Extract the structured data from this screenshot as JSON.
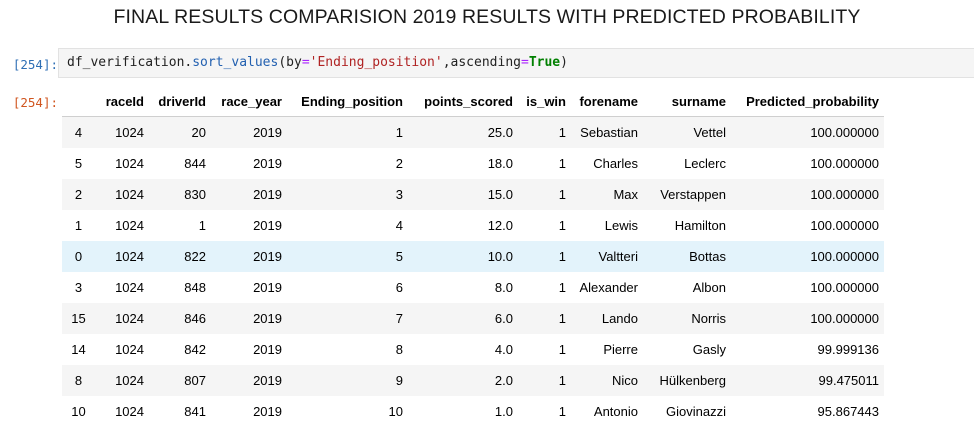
{
  "title": "FINAL RESULTS COMPARISION 2019 RESULTS WITH PREDICTED PROBABILITY",
  "input_prompt": "[254]:",
  "output_prompt": "[254]:",
  "code": {
    "var": "df_verification",
    "dot": ".",
    "method": "sort_values",
    "p1": "(by",
    "eq1": "=",
    "arg1": "'Ending_position'",
    "p2": ",ascending",
    "eq2": "=",
    "kw": "True",
    "p3": ")"
  },
  "table": {
    "columns": [
      "",
      "raceId",
      "driverId",
      "race_year",
      "Ending_position",
      "points_scored",
      "is_win",
      "forename",
      "surname",
      "Predicted_probability"
    ],
    "rows": [
      [
        "4",
        "1024",
        "20",
        "2019",
        "1",
        "25.0",
        "1",
        "Sebastian",
        "Vettel",
        "100.000000"
      ],
      [
        "5",
        "1024",
        "844",
        "2019",
        "2",
        "18.0",
        "1",
        "Charles",
        "Leclerc",
        "100.000000"
      ],
      [
        "2",
        "1024",
        "830",
        "2019",
        "3",
        "15.0",
        "1",
        "Max",
        "Verstappen",
        "100.000000"
      ],
      [
        "1",
        "1024",
        "1",
        "2019",
        "4",
        "12.0",
        "1",
        "Lewis",
        "Hamilton",
        "100.000000"
      ],
      [
        "0",
        "1024",
        "822",
        "2019",
        "5",
        "10.0",
        "1",
        "Valtteri",
        "Bottas",
        "100.000000"
      ],
      [
        "3",
        "1024",
        "848",
        "2019",
        "6",
        "8.0",
        "1",
        "Alexander",
        "Albon",
        "100.000000"
      ],
      [
        "15",
        "1024",
        "846",
        "2019",
        "7",
        "6.0",
        "1",
        "Lando",
        "Norris",
        "100.000000"
      ],
      [
        "14",
        "1024",
        "842",
        "2019",
        "8",
        "4.0",
        "1",
        "Pierre",
        "Gasly",
        "99.999136"
      ],
      [
        "8",
        "1024",
        "807",
        "2019",
        "9",
        "2.0",
        "1",
        "Nico",
        "Hülkenberg",
        "99.475011"
      ],
      [
        "10",
        "1024",
        "841",
        "2019",
        "10",
        "1.0",
        "1",
        "Antonio",
        "Giovinazzi",
        "95.867443"
      ]
    ]
  },
  "colors": {
    "row_stripe": "#f5f5f5",
    "row_hover": "#e3f3fb",
    "input_prompt": "#2f6fb5",
    "output_prompt": "#d0551f"
  }
}
